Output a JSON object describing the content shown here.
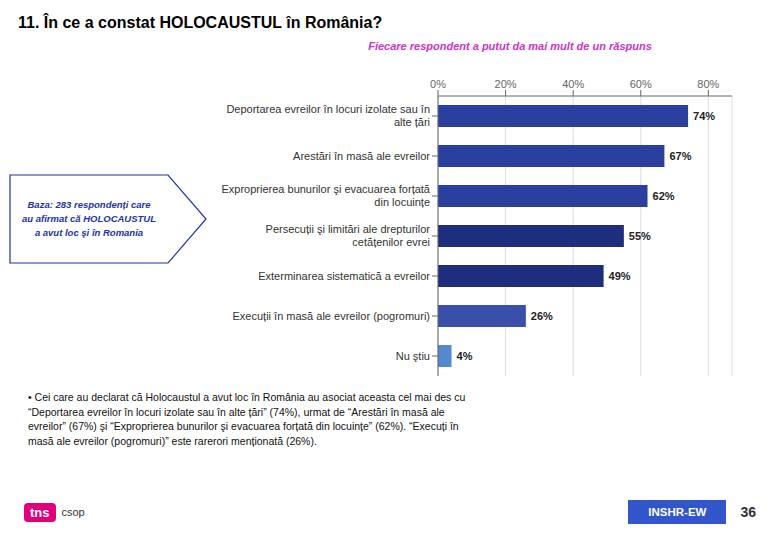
{
  "chart_data": {
    "type": "bar",
    "orientation": "horizontal",
    "title": "11. În ce a constat HOLOCAUSTUL în România?",
    "subtitle": "Fiecare respondent a putut da mai mult de un răspuns",
    "categories": [
      "Deportarea evreilor în locuri izolate sau în\nalte țări",
      "Arestări în masă ale evreilor",
      "Exproprierea bunurilor şi evacuarea forțată\ndin locuințe",
      "Persecuții şi limitări ale drepturilor\ncetățenilor evrei",
      "Exterminarea sistematică a evreilor",
      "Execuții în masă ale evreilor (pogromuri)",
      "Nu ştiu"
    ],
    "values": [
      74,
      67,
      62,
      55,
      49,
      26,
      4
    ],
    "value_labels": [
      "74%",
      "67%",
      "62%",
      "55%",
      "49%",
      "26%",
      "4%"
    ],
    "data_labels": true,
    "colors": [
      "#2b3f9e",
      "#2b3f9e",
      "#2b3f9e",
      "#1e2d7d",
      "#1e2d7d",
      "#3a4faa",
      "#5588cc"
    ],
    "xlim": [
      0,
      87
    ],
    "xticks": [
      {
        "value": 0,
        "label": "0%"
      },
      {
        "value": 20,
        "label": "20%"
      },
      {
        "value": 40,
        "label": "40%"
      },
      {
        "value": 60,
        "label": "60%"
      },
      {
        "value": 80,
        "label": "80%"
      }
    ],
    "grid": true,
    "annotations": [
      "• Cei care au declarat că Holocaustul a avut loc în România au asociat aceasta cel mai des cu\n“Deportarea evreilor în locuri izolate sau în alte țări” (74%), urmat de “Arestări în masă ale\nevreilor” (67%) şi “Exproprierea bunurilor şi evacuarea forțată din locuințe” (62%). “Execuți în\nmasă ale evreilor (pogromuri)” este rarerori menționată (26%).",
      "Baza: 283 respondenți care\nau afirmat că HOLOCAUSTUL\na avut loc şi în Romania",
      "INSHR-EW",
      "36",
      "tns",
      "csop"
    ]
  }
}
